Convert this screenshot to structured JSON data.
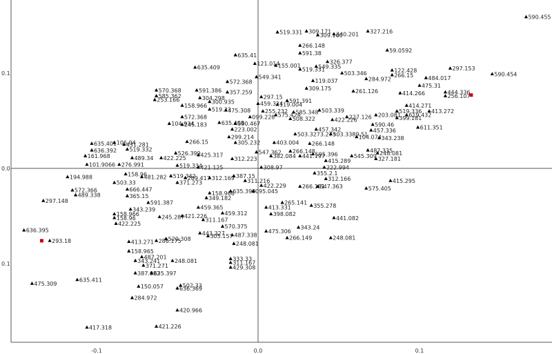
{
  "chart_data": {
    "type": "scatter",
    "title": "",
    "xlabel": "",
    "ylabel": "",
    "xlim": [
      -0.155,
      0.18
    ],
    "ylim": [
      -0.185,
      0.165
    ],
    "grid": false,
    "x_ticks": [
      "-0.1",
      "0.0",
      "0.1"
    ],
    "y_ticks": [
      "0.1",
      "0.0",
      "0.1"
    ],
    "marker_color": "#000000",
    "special_color": "#cc0000",
    "points": [
      {
        "x": 0.166,
        "y": 0.159,
        "label": "590.455"
      },
      {
        "x": 0.012,
        "y": 0.143,
        "label": "519.331"
      },
      {
        "x": 0.03,
        "y": 0.144,
        "label": "309.171"
      },
      {
        "x": 0.037,
        "y": 0.14,
        "label": "309.160"
      },
      {
        "x": 0.047,
        "y": 0.141,
        "label": "340.201"
      },
      {
        "x": 0.068,
        "y": 0.144,
        "label": "327.216"
      },
      {
        "x": 0.026,
        "y": 0.129,
        "label": "266.148"
      },
      {
        "x": 0.026,
        "y": 0.121,
        "label": "591.38"
      },
      {
        "x": 0.08,
        "y": 0.124,
        "label": "59.0592"
      },
      {
        "x": -0.014,
        "y": 0.119,
        "label": "635.41"
      },
      {
        "x": 0.043,
        "y": 0.112,
        "label": "326.377"
      },
      {
        "x": 0.036,
        "y": 0.107,
        "label": "549.335"
      },
      {
        "x": -0.002,
        "y": 0.11,
        "label": "121.014"
      },
      {
        "x": 0.011,
        "y": 0.108,
        "label": "155.001"
      },
      {
        "x": 0.026,
        "y": 0.104,
        "label": "519.331"
      },
      {
        "x": 0.052,
        "y": 0.1,
        "label": "503.346"
      },
      {
        "x": 0.083,
        "y": 0.103,
        "label": "122.428"
      },
      {
        "x": 0.083,
        "y": 0.098,
        "label": "266.15"
      },
      {
        "x": 0.119,
        "y": 0.105,
        "label": "297.153"
      },
      {
        "x": 0.104,
        "y": 0.095,
        "label": "484.017"
      },
      {
        "x": 0.145,
        "y": 0.099,
        "label": "590.454"
      },
      {
        "x": -0.039,
        "y": 0.106,
        "label": "635.409"
      },
      {
        "x": -0.001,
        "y": 0.096,
        "label": "549.341"
      },
      {
        "x": 0.034,
        "y": 0.092,
        "label": "119.037"
      },
      {
        "x": 0.067,
        "y": 0.094,
        "label": "284.972"
      },
      {
        "x": -0.019,
        "y": 0.091,
        "label": "572.368"
      },
      {
        "x": 0.1,
        "y": 0.087,
        "label": "475.31"
      },
      {
        "x": 0.03,
        "y": 0.084,
        "label": "309.175"
      },
      {
        "x": -0.063,
        "y": 0.082,
        "label": "570.368"
      },
      {
        "x": -0.038,
        "y": 0.082,
        "label": "591.386"
      },
      {
        "x": -0.019,
        "y": 0.08,
        "label": "357.259"
      },
      {
        "x": 0.059,
        "y": 0.081,
        "label": "261.126"
      },
      {
        "x": 0.088,
        "y": 0.079,
        "label": "414.266"
      },
      {
        "x": 0.116,
        "y": 0.08,
        "label": "444.336"
      },
      {
        "x": 0.116,
        "y": 0.076,
        "label": "256.107"
      },
      {
        "x": -0.063,
        "y": 0.076,
        "label": "585.362"
      },
      {
        "x": -0.036,
        "y": 0.074,
        "label": "304.298"
      },
      {
        "x": -0.03,
        "y": 0.07,
        "label": "300.935"
      },
      {
        "x": 0.002,
        "y": 0.075,
        "label": "297.15"
      },
      {
        "x": 0.018,
        "y": 0.071,
        "label": "591.391"
      },
      {
        "x": 0.0,
        "y": 0.068,
        "label": "459.324"
      },
      {
        "x": 0.012,
        "y": 0.067,
        "label": "119.004"
      },
      {
        "x": -0.064,
        "y": 0.072,
        "label": "253.166"
      },
      {
        "x": -0.047,
        "y": 0.066,
        "label": "158.966"
      },
      {
        "x": 0.092,
        "y": 0.066,
        "label": "414.271"
      },
      {
        "x": -0.03,
        "y": 0.062,
        "label": "519.33"
      },
      {
        "x": -0.02,
        "y": 0.061,
        "label": "475.308"
      },
      {
        "x": 0.003,
        "y": 0.06,
        "label": "255.232"
      },
      {
        "x": 0.022,
        "y": 0.059,
        "label": "585.348"
      },
      {
        "x": 0.038,
        "y": 0.061,
        "label": "503.339"
      },
      {
        "x": 0.086,
        "y": 0.06,
        "label": "519.336"
      },
      {
        "x": 0.106,
        "y": 0.06,
        "label": "413.272"
      },
      {
        "x": -0.047,
        "y": 0.054,
        "label": "572.368"
      },
      {
        "x": 0.011,
        "y": 0.056,
        "label": "575.424"
      },
      {
        "x": 0.055,
        "y": 0.054,
        "label": "227.126"
      },
      {
        "x": 0.073,
        "y": 0.056,
        "label": "203.081"
      },
      {
        "x": 0.092,
        "y": 0.056,
        "label": "619.432"
      },
      {
        "x": -0.005,
        "y": 0.054,
        "label": "099.228"
      },
      {
        "x": 0.02,
        "y": 0.052,
        "label": "508.322"
      },
      {
        "x": 0.046,
        "y": 0.051,
        "label": "422.226"
      },
      {
        "x": 0.086,
        "y": 0.053,
        "label": "399.181"
      },
      {
        "x": -0.055,
        "y": 0.047,
        "label": "104.934"
      },
      {
        "x": -0.047,
        "y": 0.046,
        "label": "245.183"
      },
      {
        "x": -0.024,
        "y": 0.048,
        "label": "635.408"
      },
      {
        "x": -0.014,
        "y": 0.047,
        "label": "590.467"
      },
      {
        "x": 0.071,
        "y": 0.046,
        "label": "590.46"
      },
      {
        "x": 0.099,
        "y": 0.043,
        "label": "611.351"
      },
      {
        "x": -0.016,
        "y": 0.041,
        "label": "223.002"
      },
      {
        "x": 0.036,
        "y": 0.041,
        "label": "457.342"
      },
      {
        "x": 0.07,
        "y": 0.04,
        "label": "457.336"
      },
      {
        "x": 0.023,
        "y": 0.036,
        "label": "503.3273.273"
      },
      {
        "x": 0.045,
        "y": 0.036,
        "label": "503.3389.51"
      },
      {
        "x": -0.018,
        "y": 0.033,
        "label": "299.214"
      },
      {
        "x": 0.061,
        "y": 0.033,
        "label": "104.074"
      },
      {
        "x": 0.075,
        "y": 0.032,
        "label": "343.238"
      },
      {
        "x": -0.044,
        "y": 0.028,
        "label": "266.15"
      },
      {
        "x": -0.014,
        "y": 0.027,
        "label": "305.232"
      },
      {
        "x": 0.01,
        "y": 0.027,
        "label": "403.004"
      },
      {
        "x": 0.032,
        "y": 0.026,
        "label": "266.148"
      },
      {
        "x": -0.103,
        "y": 0.026,
        "label": "635.401"
      },
      {
        "x": -0.089,
        "y": 0.027,
        "label": "106.04"
      },
      {
        "x": -0.083,
        "y": 0.025,
        "label": "431.281"
      },
      {
        "x": -0.081,
        "y": 0.02,
        "label": "519.332"
      },
      {
        "x": 0.02,
        "y": 0.018,
        "label": "266.148"
      },
      {
        "x": 0.034,
        "y": 0.015,
        "label": "595.396"
      },
      {
        "x": 0.068,
        "y": 0.019,
        "label": "487.335"
      },
      {
        "x": 0.074,
        "y": 0.016,
        "label": "248.081"
      },
      {
        "x": -0.051,
        "y": 0.016,
        "label": "526.399"
      },
      {
        "x": -0.037,
        "y": 0.014,
        "label": "425.317"
      },
      {
        "x": -0.001,
        "y": 0.017,
        "label": "547.362"
      },
      {
        "x": 0.008,
        "y": 0.013,
        "label": "382.084"
      },
      {
        "x": 0.026,
        "y": 0.013,
        "label": "441.197"
      },
      {
        "x": 0.058,
        "y": 0.013,
        "label": "545.309"
      },
      {
        "x": -0.103,
        "y": 0.019,
        "label": "636.392"
      },
      {
        "x": -0.107,
        "y": 0.013,
        "label": "161.968"
      },
      {
        "x": -0.078,
        "y": 0.011,
        "label": "489.34"
      },
      {
        "x": -0.06,
        "y": 0.011,
        "label": "422.225"
      },
      {
        "x": -0.016,
        "y": 0.01,
        "label": "312.223"
      },
      {
        "x": 0.073,
        "y": 0.01,
        "label": "327.181"
      },
      {
        "x": 0.042,
        "y": 0.008,
        "label": "415.289"
      },
      {
        "x": -0.106,
        "y": 0.004,
        "label": "101.9066"
      },
      {
        "x": -0.086,
        "y": 0.004,
        "label": "276.991"
      },
      {
        "x": -0.05,
        "y": 0.003,
        "label": "519.334"
      },
      {
        "x": -0.037,
        "y": 0.001,
        "label": "421.125"
      },
      {
        "x": 0.002,
        "y": 0.001,
        "label": "308.97"
      },
      {
        "x": 0.041,
        "y": 0.001,
        "label": "222.994"
      },
      {
        "x": -0.118,
        "y": -0.009,
        "label": "194.988"
      },
      {
        "x": -0.082,
        "y": -0.006,
        "label": "158.96"
      },
      {
        "x": -0.072,
        "y": -0.009,
        "label": "481.282"
      },
      {
        "x": -0.054,
        "y": -0.008,
        "label": "519.342"
      },
      {
        "x": -0.045,
        "y": -0.01,
        "label": "289.417"
      },
      {
        "x": -0.03,
        "y": -0.01,
        "label": "312.169"
      },
      {
        "x": -0.015,
        "y": -0.008,
        "label": "387.15"
      },
      {
        "x": -0.008,
        "y": -0.013,
        "label": "311.216"
      },
      {
        "x": 0.035,
        "y": -0.005,
        "label": "355.2.1"
      },
      {
        "x": 0.042,
        "y": -0.011,
        "label": "312.166"
      },
      {
        "x": 0.082,
        "y": -0.013,
        "label": "415.295"
      },
      {
        "x": -0.089,
        "y": -0.015,
        "label": "503.33"
      },
      {
        "x": -0.05,
        "y": -0.015,
        "label": "371.273"
      },
      {
        "x": 0.002,
        "y": -0.018,
        "label": "422.229"
      },
      {
        "x": 0.026,
        "y": -0.019,
        "label": "266.151"
      },
      {
        "x": 0.037,
        "y": -0.019,
        "label": "547.363"
      },
      {
        "x": 0.067,
        "y": -0.021,
        "label": "575.405"
      },
      {
        "x": -0.115,
        "y": -0.023,
        "label": "572.366"
      },
      {
        "x": -0.081,
        "y": -0.022,
        "label": "666.447"
      },
      {
        "x": -0.113,
        "y": -0.028,
        "label": "489.338"
      },
      {
        "x": -0.081,
        "y": -0.029,
        "label": "365.15"
      },
      {
        "x": -0.03,
        "y": -0.026,
        "label": "158.966"
      },
      {
        "x": -0.017,
        "y": -0.024,
        "label": "635.399"
      },
      {
        "x": -0.003,
        "y": -0.024,
        "label": "095.045"
      },
      {
        "x": -0.133,
        "y": -0.034,
        "label": "297.148"
      },
      {
        "x": -0.032,
        "y": -0.031,
        "label": "349.182"
      },
      {
        "x": -0.068,
        "y": -0.036,
        "label": "591.387"
      },
      {
        "x": 0.015,
        "y": -0.036,
        "label": "265.141"
      },
      {
        "x": 0.033,
        "y": -0.039,
        "label": "355.278"
      },
      {
        "x": -0.079,
        "y": -0.043,
        "label": "343.239"
      },
      {
        "x": -0.037,
        "y": -0.041,
        "label": "459.365"
      },
      {
        "x": 0.005,
        "y": -0.041,
        "label": "413.331"
      },
      {
        "x": -0.089,
        "y": -0.048,
        "label": "158.966"
      },
      {
        "x": -0.061,
        "y": -0.051,
        "label": "245.287"
      },
      {
        "x": -0.047,
        "y": -0.05,
        "label": "421.226"
      },
      {
        "x": -0.022,
        "y": -0.047,
        "label": "459.312"
      },
      {
        "x": 0.008,
        "y": -0.048,
        "label": "398.082"
      },
      {
        "x": 0.047,
        "y": -0.052,
        "label": "441.082"
      },
      {
        "x": -0.089,
        "y": -0.052,
        "label": "158.96"
      },
      {
        "x": -0.034,
        "y": -0.054,
        "label": "311.167"
      },
      {
        "x": -0.088,
        "y": -0.058,
        "label": "422.225"
      },
      {
        "x": -0.022,
        "y": -0.061,
        "label": "570.375"
      },
      {
        "x": 0.025,
        "y": -0.062,
        "label": "343.24"
      },
      {
        "x": -0.145,
        "y": -0.065,
        "label": "636.395"
      },
      {
        "x": 0.005,
        "y": -0.066,
        "label": "475.306"
      },
      {
        "x": -0.036,
        "y": -0.068,
        "label": "443.327"
      },
      {
        "x": -0.016,
        "y": -0.07,
        "label": "487.338"
      },
      {
        "x": 0.018,
        "y": -0.073,
        "label": "266.149"
      },
      {
        "x": 0.045,
        "y": -0.073,
        "label": "248.081"
      },
      {
        "x": -0.031,
        "y": -0.071,
        "label": "305.157"
      },
      {
        "x": -0.129,
        "y": -0.076,
        "label": "293.18"
      },
      {
        "x": -0.08,
        "y": -0.077,
        "label": "413.271"
      },
      {
        "x": -0.063,
        "y": -0.076,
        "label": "286.175"
      },
      {
        "x": -0.057,
        "y": -0.074,
        "label": "520.308"
      },
      {
        "x": -0.015,
        "y": -0.079,
        "label": "248.081"
      },
      {
        "x": -0.08,
        "y": -0.087,
        "label": "158.965"
      },
      {
        "x": -0.072,
        "y": -0.093,
        "label": "487.201"
      },
      {
        "x": -0.076,
        "y": -0.097,
        "label": "343.241"
      },
      {
        "x": -0.071,
        "y": -0.102,
        "label": "371.271"
      },
      {
        "x": -0.053,
        "y": -0.097,
        "label": "248.081"
      },
      {
        "x": -0.017,
        "y": -0.095,
        "label": "333.33"
      },
      {
        "x": -0.017,
        "y": -0.099,
        "label": "311.167"
      },
      {
        "x": -0.017,
        "y": -0.104,
        "label": "429.308"
      },
      {
        "x": -0.076,
        "y": -0.11,
        "label": "387.082"
      },
      {
        "x": -0.066,
        "y": -0.11,
        "label": "635.397"
      },
      {
        "x": -0.112,
        "y": -0.117,
        "label": "635.411"
      },
      {
        "x": -0.14,
        "y": -0.121,
        "label": "475.309"
      },
      {
        "x": -0.074,
        "y": -0.124,
        "label": "150.057"
      },
      {
        "x": -0.048,
        "y": -0.123,
        "label": "502.33"
      },
      {
        "x": -0.05,
        "y": -0.126,
        "label": "636.369"
      },
      {
        "x": -0.078,
        "y": -0.136,
        "label": "284.972"
      },
      {
        "x": -0.05,
        "y": -0.149,
        "label": "420.966"
      },
      {
        "x": -0.106,
        "y": -0.167,
        "label": "417.318"
      },
      {
        "x": -0.063,
        "y": -0.166,
        "label": "421.226"
      }
    ],
    "highlighted_points": [
      {
        "x": 0.132,
        "y": 0.077
      },
      {
        "x": -0.134,
        "y": -0.076
      }
    ]
  }
}
